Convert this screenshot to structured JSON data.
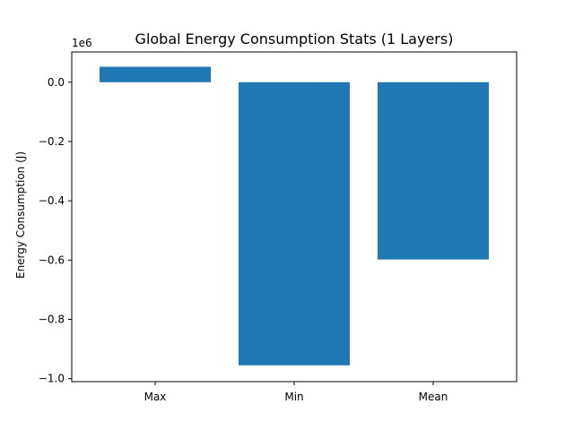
{
  "chart_data": {
    "type": "bar",
    "title": "Global Energy Consumption Stats (1 Layers)",
    "xlabel": "",
    "ylabel": "Energy Consumption (J)",
    "categories": [
      "Max",
      "Min",
      "Mean"
    ],
    "values": [
      52000,
      -955000,
      -598000
    ],
    "ylim": [
      -1010000,
      102000
    ],
    "yticks": [
      -1000000,
      -800000,
      -600000,
      -400000,
      -200000,
      0
    ],
    "ytick_labels": [
      "−1.0",
      "−0.8",
      "−0.6",
      "−0.4",
      "−0.2",
      "0.0"
    ],
    "yaxis_offset": "1e6",
    "bar_color": "#1f77b4",
    "grid": false,
    "legend": "none"
  }
}
